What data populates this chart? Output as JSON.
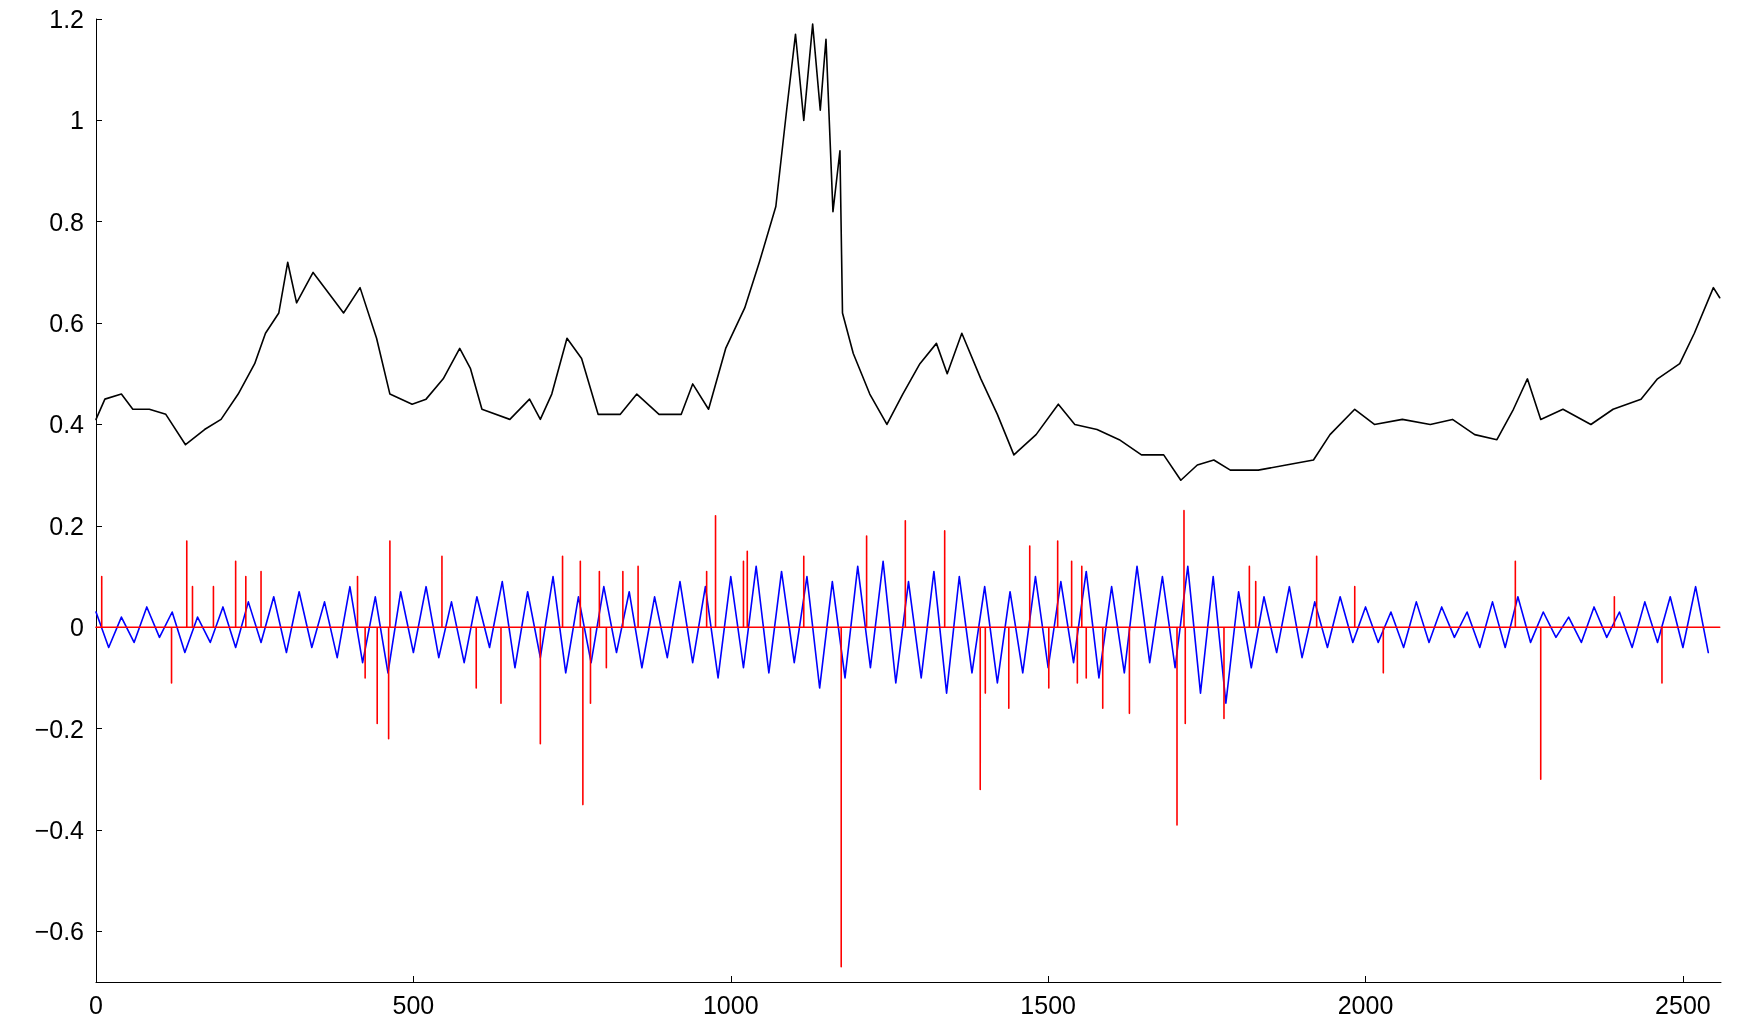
{
  "chart_data": {
    "type": "line",
    "xlim": [
      0,
      2560
    ],
    "ylim": [
      -0.7,
      1.2
    ],
    "xticks": [
      0,
      500,
      1000,
      1500,
      2000,
      2500
    ],
    "yticks": [
      {
        "value": -0.6,
        "label": "−0.6"
      },
      {
        "value": -0.4,
        "label": "−0.4"
      },
      {
        "value": -0.2,
        "label": "−0.2"
      },
      0,
      0.2,
      0.4,
      0.6,
      0.8,
      1,
      1.2
    ],
    "grid": false,
    "marker": "none",
    "line_style": "solid",
    "series": [
      {
        "color": "#000000",
        "x": [
          0,
          14,
          40,
          58,
          84,
          110,
          141,
          171,
          197,
          224,
          250,
          267,
          288,
          302,
          316,
          342,
          372,
          390,
          416,
          442,
          463,
          498,
          520,
          547,
          573,
          590,
          608,
          652,
          683,
          700,
          718,
          742,
          765,
          791,
          826,
          852,
          887,
          922,
          940,
          965,
          992,
          1022,
          1045,
          1071,
          1088,
          1102,
          1115,
          1129,
          1141,
          1150,
          1161,
          1172,
          1176,
          1193,
          1219,
          1246,
          1271,
          1298,
          1324,
          1341,
          1364,
          1394,
          1420,
          1446,
          1481,
          1516,
          1542,
          1577,
          1612,
          1647,
          1682,
          1709,
          1735,
          1761,
          1787,
          1831,
          1875,
          1918,
          1944,
          1983,
          2014,
          2058,
          2102,
          2137,
          2172,
          2207,
          2233,
          2255,
          2276,
          2311,
          2355,
          2390,
          2434,
          2460,
          2495,
          2518,
          2548,
          2558
        ],
        "values": [
          0.41,
          0.45,
          0.46,
          0.43,
          0.43,
          0.42,
          0.36,
          0.39,
          0.41,
          0.46,
          0.52,
          0.58,
          0.62,
          0.72,
          0.64,
          0.7,
          0.65,
          0.62,
          0.67,
          0.57,
          0.46,
          0.44,
          0.45,
          0.49,
          0.55,
          0.51,
          0.43,
          0.41,
          0.45,
          0.41,
          0.46,
          0.57,
          0.53,
          0.42,
          0.42,
          0.46,
          0.42,
          0.42,
          0.48,
          0.43,
          0.55,
          0.63,
          0.72,
          0.83,
          1.02,
          1.17,
          1,
          1.19,
          1.02,
          1.16,
          0.82,
          0.94,
          0.62,
          0.54,
          0.46,
          0.4,
          0.46,
          0.52,
          0.56,
          0.5,
          0.58,
          0.49,
          0.42,
          0.34,
          0.38,
          0.44,
          0.4,
          0.39,
          0.37,
          0.34,
          0.34,
          0.29,
          0.32,
          0.33,
          0.31,
          0.31,
          0.32,
          0.33,
          0.38,
          0.43,
          0.4,
          0.41,
          0.4,
          0.41,
          0.38,
          0.37,
          0.43,
          0.49,
          0.41,
          0.43,
          0.4,
          0.43,
          0.45,
          0.49,
          0.52,
          0.58,
          0.67,
          0.65
        ]
      },
      {
        "color": "#0000ff",
        "x": [
          0,
          20,
          40,
          60,
          80,
          100,
          120,
          140,
          160,
          180,
          200,
          220,
          240,
          260,
          280,
          300,
          320,
          340,
          360,
          380,
          400,
          420,
          440,
          460,
          480,
          500,
          520,
          540,
          560,
          580,
          600,
          620,
          640,
          660,
          680,
          700,
          720,
          740,
          760,
          780,
          800,
          820,
          840,
          860,
          880,
          900,
          920,
          940,
          960,
          980,
          1000,
          1020,
          1040,
          1060,
          1080,
          1100,
          1120,
          1140,
          1160,
          1180,
          1200,
          1220,
          1240,
          1260,
          1280,
          1300,
          1320,
          1340,
          1360,
          1380,
          1400,
          1420,
          1440,
          1460,
          1480,
          1500,
          1520,
          1540,
          1560,
          1580,
          1600,
          1620,
          1640,
          1660,
          1680,
          1700,
          1720,
          1740,
          1760,
          1780,
          1800,
          1820,
          1840,
          1860,
          1880,
          1900,
          1920,
          1940,
          1960,
          1980,
          2000,
          2020,
          2040,
          2060,
          2080,
          2100,
          2120,
          2140,
          2160,
          2180,
          2200,
          2220,
          2240,
          2260,
          2280,
          2300,
          2320,
          2340,
          2360,
          2380,
          2400,
          2420,
          2440,
          2460,
          2480,
          2500,
          2520,
          2540
        ],
        "values": [
          0.03,
          -0.04,
          0.02,
          -0.03,
          0.04,
          -0.02,
          0.03,
          -0.05,
          0.02,
          -0.03,
          0.04,
          -0.04,
          0.05,
          -0.03,
          0.06,
          -0.05,
          0.07,
          -0.04,
          0.05,
          -0.06,
          0.08,
          -0.07,
          0.06,
          -0.09,
          0.07,
          -0.05,
          0.08,
          -0.06,
          0.05,
          -0.07,
          0.06,
          -0.04,
          0.09,
          -0.08,
          0.07,
          -0.06,
          0.1,
          -0.09,
          0.06,
          -0.07,
          0.08,
          -0.05,
          0.07,
          -0.08,
          0.06,
          -0.06,
          0.09,
          -0.07,
          0.08,
          -0.1,
          0.1,
          -0.08,
          0.12,
          -0.09,
          0.11,
          -0.07,
          0.1,
          -0.12,
          0.09,
          -0.1,
          0.12,
          -0.08,
          0.13,
          -0.11,
          0.09,
          -0.1,
          0.11,
          -0.13,
          0.1,
          -0.09,
          0.08,
          -0.11,
          0.07,
          -0.09,
          0.1,
          -0.08,
          0.09,
          -0.07,
          0.11,
          -0.1,
          0.08,
          -0.09,
          0.12,
          -0.07,
          0.1,
          -0.08,
          0.12,
          -0.13,
          0.1,
          -0.15,
          0.07,
          -0.08,
          0.06,
          -0.05,
          0.08,
          -0.06,
          0.05,
          -0.04,
          0.06,
          -0.03,
          0.04,
          -0.03,
          0.03,
          -0.04,
          0.05,
          -0.03,
          0.04,
          -0.02,
          0.03,
          -0.04,
          0.05,
          -0.04,
          0.06,
          -0.03,
          0.03,
          -0.02,
          0.02,
          -0.03,
          0.04,
          -0.02,
          0.03,
          -0.04,
          0.05,
          -0.03,
          0.06,
          -0.04,
          0.08,
          -0.05
        ]
      },
      {
        "color": "#ff0000",
        "x": [
          0,
          9,
          9,
          9,
          119,
          119,
          119,
          143,
          143,
          143,
          152,
          152,
          152,
          185,
          185,
          185,
          220,
          220,
          220,
          236,
          236,
          236,
          260,
          260,
          260,
          412,
          412,
          412,
          424,
          424,
          424,
          443,
          443,
          443,
          461,
          461,
          461,
          463,
          463,
          463,
          545,
          545,
          545,
          599,
          599,
          599,
          638,
          638,
          638,
          700,
          700,
          700,
          735,
          735,
          735,
          763,
          763,
          763,
          767,
          767,
          767,
          779,
          779,
          779,
          793,
          793,
          793,
          804,
          804,
          804,
          830,
          830,
          830,
          854,
          854,
          854,
          962,
          962,
          962,
          976,
          976,
          976,
          1020,
          1020,
          1020,
          1026,
          1026,
          1026,
          1115,
          1115,
          1115,
          1174,
          1174,
          1174,
          1214,
          1214,
          1214,
          1275,
          1275,
          1275,
          1337,
          1337,
          1337,
          1393,
          1393,
          1393,
          1401,
          1401,
          1401,
          1438,
          1438,
          1438,
          1471,
          1471,
          1471,
          1501,
          1501,
          1501,
          1515,
          1515,
          1515,
          1537,
          1537,
          1537,
          1546,
          1546,
          1546,
          1553,
          1553,
          1553,
          1560,
          1560,
          1560,
          1586,
          1586,
          1586,
          1628,
          1628,
          1628,
          1703,
          1703,
          1703,
          1714,
          1714,
          1714,
          1716,
          1716,
          1716,
          1777,
          1777,
          1777,
          1817,
          1817,
          1817,
          1827,
          1827,
          1827,
          1923,
          1923,
          1923,
          1983,
          1983,
          1983,
          2028,
          2028,
          2028,
          2236,
          2236,
          2236,
          2276,
          2276,
          2276,
          2392,
          2392,
          2392,
          2467,
          2467,
          2467,
          2558
        ],
        "values": [
          0,
          0,
          0.1,
          0,
          0,
          -0.11,
          0,
          0,
          0.17,
          0,
          0,
          0.08,
          0,
          0,
          0.08,
          0,
          0,
          0.13,
          0,
          0,
          0.1,
          0,
          0,
          0.11,
          0,
          0,
          0.1,
          0,
          0,
          -0.1,
          0,
          0,
          -0.19,
          0,
          0,
          -0.22,
          0,
          0,
          0.17,
          0,
          0,
          0.14,
          0,
          0,
          -0.12,
          0,
          0,
          -0.15,
          0,
          0,
          -0.23,
          0,
          0,
          0.14,
          0,
          0,
          0.13,
          0,
          0,
          -0.35,
          0,
          0,
          -0.15,
          0,
          0,
          0.11,
          0,
          0,
          -0.08,
          0,
          0,
          0.11,
          0,
          0,
          0.12,
          0,
          0,
          0.11,
          0,
          0,
          0.22,
          0,
          0,
          0.13,
          0,
          0,
          0.15,
          0,
          0,
          0.14,
          0,
          0,
          -0.67,
          0,
          0,
          0.18,
          0,
          0,
          0.21,
          0,
          0,
          0.19,
          0,
          0,
          -0.32,
          0,
          0,
          -0.13,
          0,
          0,
          -0.16,
          0,
          0,
          0.16,
          0,
          0,
          -0.12,
          0,
          0,
          0.17,
          0,
          0,
          0.13,
          0,
          0,
          -0.11,
          0,
          0,
          0.12,
          0,
          0,
          -0.1,
          0,
          0,
          -0.16,
          0,
          0,
          -0.17,
          0,
          0,
          -0.39,
          0,
          0,
          0.23,
          0,
          0,
          -0.19,
          0,
          0,
          -0.18,
          0,
          0,
          0.12,
          0,
          0,
          0.09,
          0,
          0,
          0.14,
          0,
          0,
          0.08,
          0,
          0,
          -0.09,
          0,
          0,
          0.13,
          0,
          0,
          -0.3,
          0,
          0,
          0.06,
          0,
          0,
          -0.11,
          0,
          0
        ]
      }
    ]
  }
}
